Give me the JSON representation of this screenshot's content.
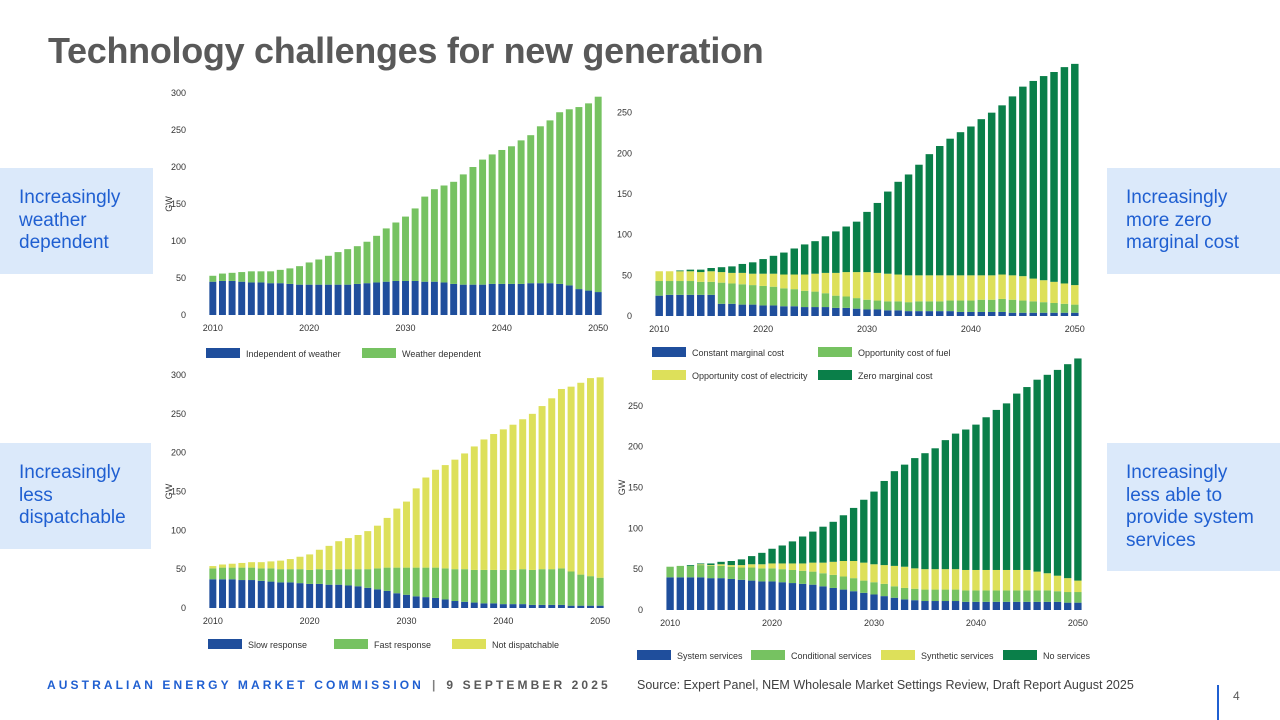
{
  "slide": {
    "title": "Technology challenges for new generation",
    "callouts": {
      "top_left": [
        "Increasingly",
        "weather",
        "dependent"
      ],
      "bottom_left": [
        "Increasingly",
        "less",
        "dispatchable"
      ],
      "top_right": [
        "Increasingly",
        "more zero",
        "marginal cost"
      ],
      "bottom_right": [
        "Increasingly",
        "less able to",
        "provide system",
        "services"
      ]
    },
    "footer": {
      "org": "AUSTRALIAN ENERGY MARKET COMMISSION",
      "separator": "|",
      "date": "9 SEPTEMBER 2025",
      "source": "Source: Expert Panel, NEM Wholesale Market Settings Review, Draft Report August 2025",
      "page_number": "4"
    }
  },
  "chart_data": [
    {
      "type": "bar",
      "stacked": true,
      "x": [
        2010,
        2011,
        2012,
        2013,
        2014,
        2015,
        2016,
        2017,
        2018,
        2019,
        2020,
        2021,
        2022,
        2023,
        2024,
        2025,
        2026,
        2027,
        2028,
        2029,
        2030,
        2031,
        2032,
        2033,
        2034,
        2035,
        2036,
        2037,
        2038,
        2039,
        2040,
        2041,
        2042,
        2043,
        2044,
        2045,
        2046,
        2047,
        2048,
        2049,
        2050
      ],
      "xticks": [
        2010,
        2020,
        2030,
        2040,
        2050
      ],
      "ylabel": "GW",
      "ylim": [
        0,
        300
      ],
      "yticks": [
        0,
        50,
        100,
        150,
        200,
        250,
        300
      ],
      "grid": false,
      "legend_position": "bottom",
      "series": [
        {
          "name": "Independent of weather",
          "color": "#1f4e9c",
          "values": [
            45,
            46,
            46,
            45,
            44,
            44,
            43,
            43,
            42,
            41,
            41,
            41,
            41,
            41,
            41,
            42,
            43,
            44,
            45,
            46,
            46,
            46,
            45,
            45,
            44,
            42,
            41,
            41,
            41,
            42,
            42,
            42,
            42,
            43,
            43,
            43,
            42,
            40,
            35,
            33,
            31
          ]
        },
        {
          "name": "Weather dependent",
          "color": "#76c261",
          "values": [
            8,
            10,
            11,
            13,
            15,
            15,
            16,
            18,
            21,
            25,
            30,
            34,
            39,
            44,
            48,
            51,
            56,
            63,
            72,
            79,
            87,
            98,
            115,
            125,
            131,
            138,
            149,
            159,
            169,
            175,
            181,
            186,
            194,
            200,
            212,
            220,
            232,
            238,
            246,
            253,
            264
          ]
        }
      ]
    },
    {
      "type": "bar",
      "stacked": true,
      "x": [
        2010,
        2011,
        2012,
        2013,
        2014,
        2015,
        2016,
        2017,
        2018,
        2019,
        2020,
        2021,
        2022,
        2023,
        2024,
        2025,
        2026,
        2027,
        2028,
        2029,
        2030,
        2031,
        2032,
        2033,
        2034,
        2035,
        2036,
        2037,
        2038,
        2039,
        2040,
        2041,
        2042,
        2043,
        2044,
        2045,
        2046,
        2047,
        2048,
        2049,
        2050
      ],
      "xticks": [
        2010,
        2020,
        2030,
        2040,
        2050
      ],
      "ylabel": "",
      "ylim": [
        0,
        300
      ],
      "yticks": [
        0,
        50,
        100,
        150,
        200,
        250
      ],
      "grid": false,
      "legend_position": "bottom",
      "series": [
        {
          "name": "Constant marginal cost",
          "color": "#1f4e9c",
          "values": [
            25,
            26,
            26,
            26,
            26,
            26,
            15,
            15,
            14,
            14,
            13,
            13,
            12,
            12,
            11,
            11,
            11,
            10,
            10,
            9,
            8,
            8,
            7,
            7,
            6,
            6,
            6,
            6,
            6,
            5,
            5,
            5,
            5,
            5,
            4,
            4,
            4,
            4,
            4,
            4,
            4
          ]
        },
        {
          "name": "Opportunity cost of fuel",
          "color": "#76c261",
          "values": [
            18,
            17,
            17,
            17,
            16,
            16,
            26,
            25,
            25,
            24,
            24,
            23,
            22,
            21,
            20,
            19,
            17,
            15,
            14,
            13,
            12,
            11,
            11,
            11,
            11,
            12,
            12,
            12,
            13,
            14,
            14,
            15,
            15,
            16,
            16,
            15,
            14,
            13,
            12,
            11,
            10
          ]
        },
        {
          "name": "Opportunity cost of electricity",
          "color": "#dde05a",
          "values": [
            12,
            12,
            12,
            12,
            12,
            13,
            13,
            13,
            14,
            14,
            15,
            16,
            17,
            18,
            20,
            22,
            25,
            28,
            30,
            32,
            34,
            34,
            34,
            33,
            33,
            32,
            32,
            32,
            31,
            31,
            31,
            30,
            30,
            30,
            30,
            30,
            28,
            27,
            26,
            25,
            24
          ]
        },
        {
          "name": "Zero marginal cost",
          "color": "#0a7f49",
          "values": [
            0,
            0,
            1,
            2,
            3,
            4,
            6,
            8,
            11,
            14,
            18,
            22,
            27,
            32,
            37,
            40,
            45,
            51,
            56,
            62,
            74,
            86,
            101,
            114,
            124,
            136,
            149,
            159,
            168,
            176,
            183,
            192,
            200,
            208,
            220,
            233,
            243,
            251,
            258,
            266,
            272
          ]
        }
      ]
    },
    {
      "type": "bar",
      "stacked": true,
      "x": [
        2010,
        2011,
        2012,
        2013,
        2014,
        2015,
        2016,
        2017,
        2018,
        2019,
        2020,
        2021,
        2022,
        2023,
        2024,
        2025,
        2026,
        2027,
        2028,
        2029,
        2030,
        2031,
        2032,
        2033,
        2034,
        2035,
        2036,
        2037,
        2038,
        2039,
        2040,
        2041,
        2042,
        2043,
        2044,
        2045,
        2046,
        2047,
        2048,
        2049,
        2050
      ],
      "xticks": [
        2010,
        2020,
        2030,
        2040,
        2050
      ],
      "ylabel": "GW",
      "ylim": [
        0,
        300
      ],
      "yticks": [
        0,
        50,
        100,
        150,
        200,
        250,
        300
      ],
      "grid": false,
      "legend_position": "bottom",
      "series": [
        {
          "name": "Slow response",
          "color": "#1f4e9c",
          "values": [
            37,
            37,
            37,
            36,
            36,
            35,
            34,
            33,
            33,
            32,
            31,
            31,
            30,
            30,
            29,
            28,
            26,
            24,
            22,
            19,
            17,
            15,
            14,
            13,
            11,
            9,
            8,
            7,
            6,
            6,
            5,
            5,
            5,
            4,
            4,
            4,
            4,
            3,
            3,
            3,
            3
          ]
        },
        {
          "name": "Fast response",
          "color": "#76c261",
          "values": [
            14,
            15,
            15,
            16,
            16,
            16,
            17,
            17,
            17,
            18,
            18,
            19,
            19,
            20,
            21,
            22,
            24,
            27,
            30,
            33,
            35,
            37,
            38,
            39,
            40,
            41,
            42,
            42,
            43,
            43,
            44,
            44,
            45,
            45,
            46,
            46,
            47,
            44,
            40,
            38,
            36
          ]
        },
        {
          "name": "Not dispatchable",
          "color": "#dde05a",
          "values": [
            3,
            4,
            5,
            6,
            7,
            8,
            9,
            11,
            13,
            16,
            20,
            25,
            31,
            36,
            40,
            44,
            49,
            55,
            64,
            76,
            85,
            102,
            116,
            126,
            133,
            141,
            149,
            159,
            168,
            175,
            181,
            187,
            193,
            201,
            210,
            220,
            231,
            238,
            247,
            255,
            258
          ]
        }
      ]
    },
    {
      "type": "bar",
      "stacked": true,
      "x": [
        2010,
        2011,
        2012,
        2013,
        2014,
        2015,
        2016,
        2017,
        2018,
        2019,
        2020,
        2021,
        2022,
        2023,
        2024,
        2025,
        2026,
        2027,
        2028,
        2029,
        2030,
        2031,
        2032,
        2033,
        2034,
        2035,
        2036,
        2037,
        2038,
        2039,
        2040,
        2041,
        2042,
        2043,
        2044,
        2045,
        2046,
        2047,
        2048,
        2049,
        2050
      ],
      "xticks": [
        2010,
        2020,
        2030,
        2040,
        2050
      ],
      "ylabel": "GW",
      "ylim": [
        0,
        300
      ],
      "yticks": [
        0,
        50,
        100,
        150,
        200,
        250
      ],
      "grid": false,
      "legend_position": "bottom",
      "series": [
        {
          "name": "System services",
          "color": "#1f4e9c",
          "values": [
            40,
            40,
            40,
            40,
            39,
            39,
            38,
            37,
            36,
            35,
            35,
            34,
            33,
            32,
            31,
            29,
            27,
            25,
            23,
            21,
            19,
            17,
            15,
            13,
            12,
            11,
            11,
            11,
            11,
            10,
            10,
            10,
            10,
            10,
            10,
            10,
            10,
            10,
            10,
            9,
            9
          ]
        },
        {
          "name": "Conditional services",
          "color": "#76c261",
          "values": [
            13,
            14,
            14,
            15,
            15,
            15,
            15,
            15,
            16,
            16,
            16,
            16,
            16,
            16,
            16,
            16,
            16,
            16,
            16,
            15,
            15,
            15,
            14,
            14,
            14,
            14,
            14,
            14,
            14,
            14,
            14,
            14,
            14,
            14,
            14,
            14,
            14,
            14,
            13,
            13,
            13
          ]
        },
        {
          "name": "Synthetic services",
          "color": "#dde05a",
          "values": [
            0,
            0,
            0,
            1,
            1,
            2,
            2,
            3,
            4,
            5,
            6,
            7,
            8,
            9,
            11,
            13,
            16,
            19,
            21,
            22,
            22,
            23,
            25,
            26,
            25,
            25,
            25,
            25,
            25,
            25,
            25,
            25,
            25,
            25,
            25,
            25,
            23,
            21,
            19,
            17,
            14
          ]
        },
        {
          "name": "No services",
          "color": "#0a7f49",
          "values": [
            0,
            0,
            1,
            1,
            2,
            3,
            5,
            7,
            10,
            14,
            18,
            22,
            27,
            33,
            38,
            44,
            49,
            56,
            65,
            77,
            89,
            103,
            116,
            125,
            135,
            142,
            148,
            158,
            166,
            172,
            178,
            187,
            196,
            204,
            216,
            224,
            235,
            243,
            252,
            262,
            272
          ]
        }
      ]
    }
  ]
}
